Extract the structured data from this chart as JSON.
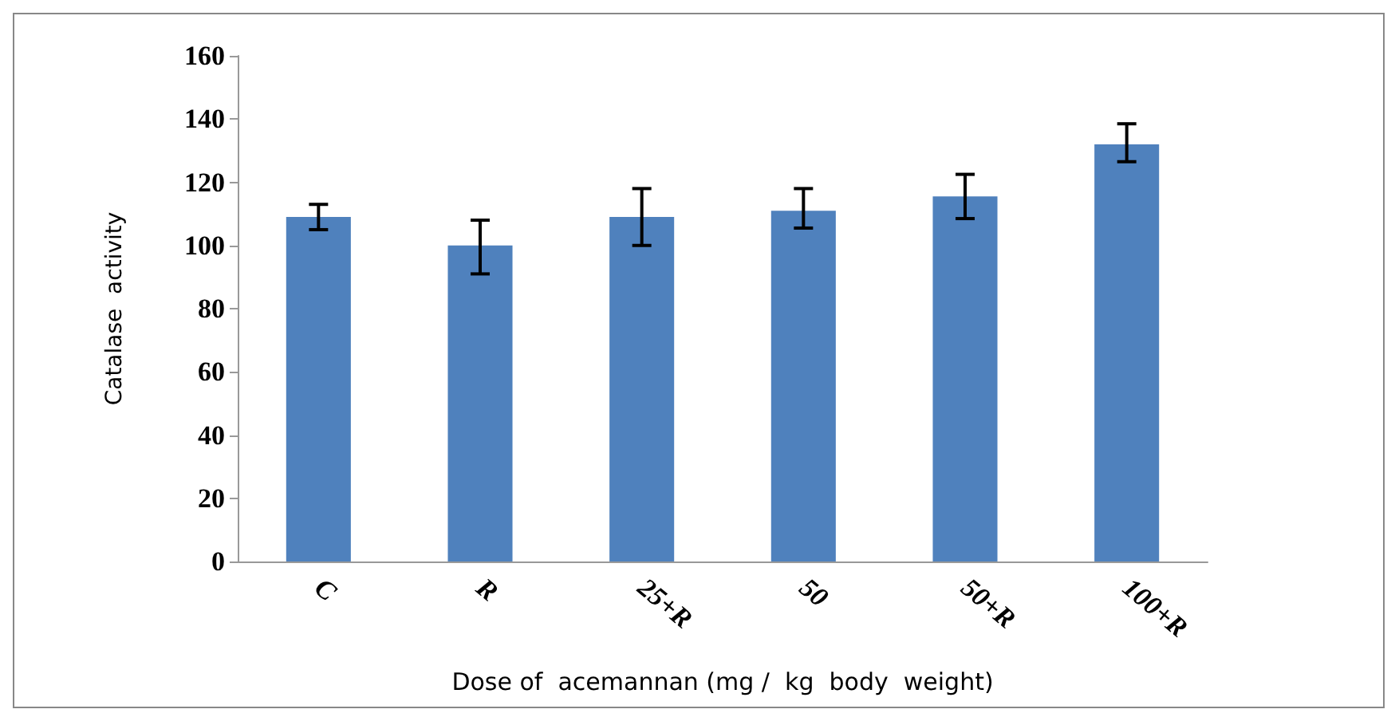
{
  "chart_data": {
    "type": "bar",
    "xlabel": "Dose of  acemannan (mg /  kg  body  weight)",
    "ylabel": "Catalase  activity",
    "categories": [
      "C",
      "R",
      "25+R",
      "50",
      "50+R",
      "100+R"
    ],
    "values": [
      109,
      100,
      109,
      111,
      115.5,
      132
    ],
    "errors": [
      [
        105,
        113
      ],
      [
        91,
        108
      ],
      [
        100,
        118
      ],
      [
        105.5,
        118
      ],
      [
        108.5,
        122.5
      ],
      [
        126.5,
        138.5
      ]
    ],
    "color": "#4f81bd",
    "ylim": [
      0,
      160
    ],
    "yticks": [
      0,
      20,
      40,
      60,
      80,
      100,
      120,
      140,
      160
    ],
    "grid": false
  }
}
